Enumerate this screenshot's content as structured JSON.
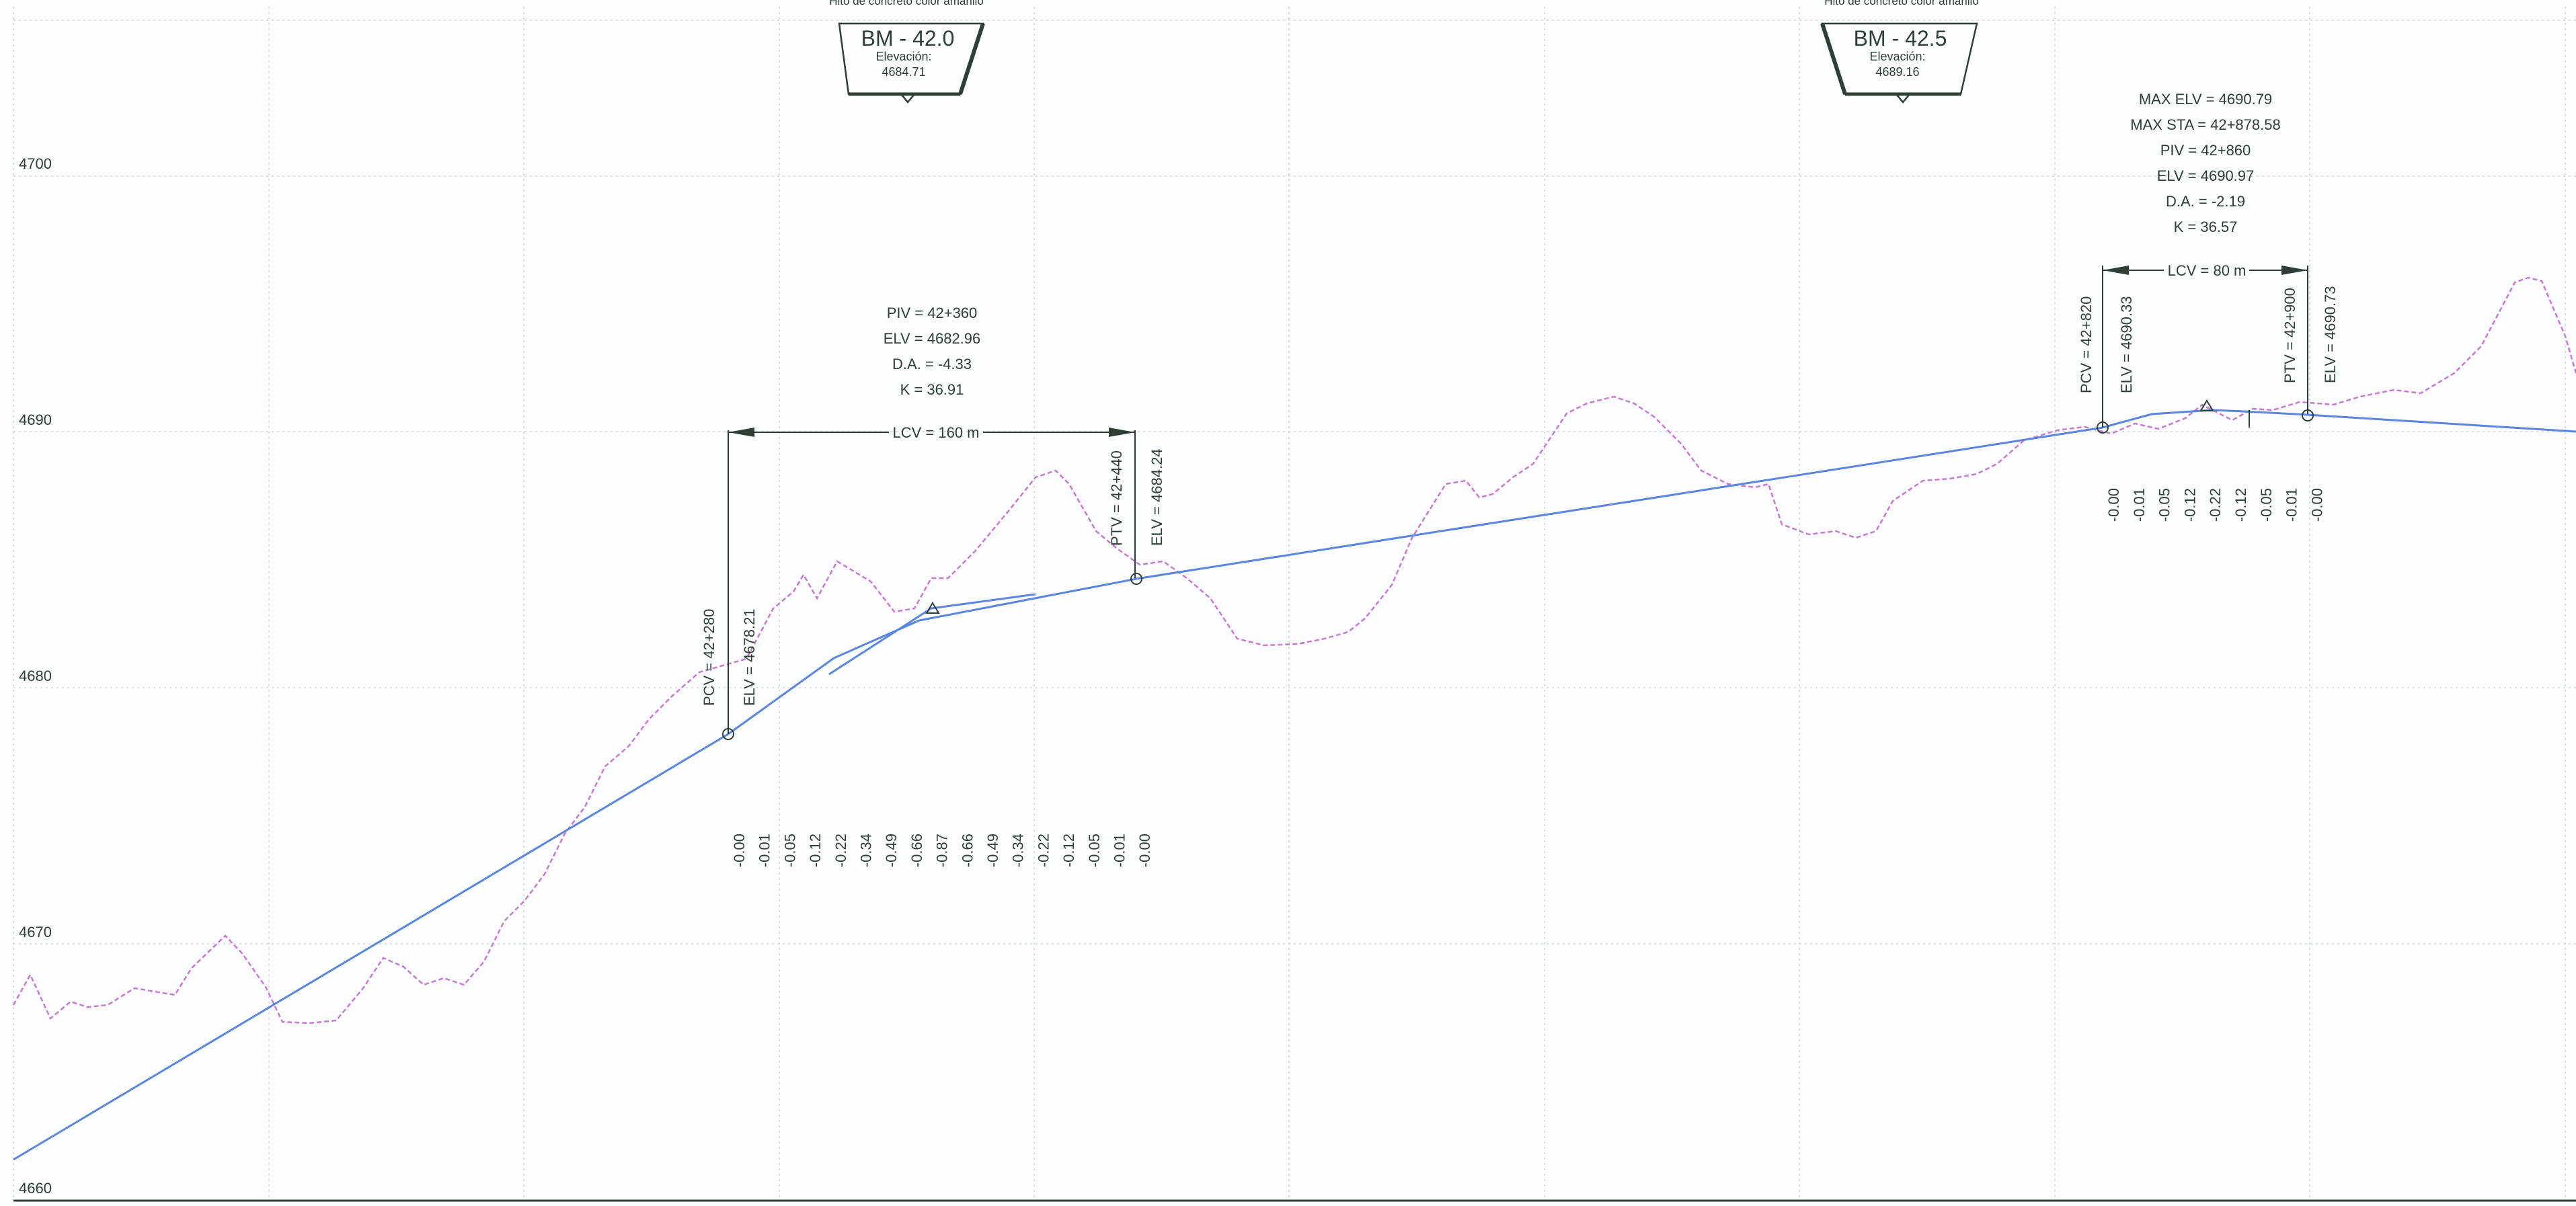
{
  "y_axis": {
    "ticks": [
      "4700",
      "4690",
      "4680",
      "4670",
      "4660"
    ]
  },
  "benchmarks": [
    {
      "caption": "Hito de concreto color amarillo",
      "name": "BM - 42.0",
      "elev_label": "Elevación:",
      "elev": "4684.71"
    },
    {
      "caption": "Hito de concreto color amarillo",
      "name": "BM - 42.5",
      "elev_label": "Elevación:",
      "elev": "4689.16"
    }
  ],
  "curve1": {
    "info": [
      "PIV = 42+360",
      "ELV = 4682.96",
      "D.A. = -4.33",
      "K = 36.91"
    ],
    "lcv": "LCV = 160 m",
    "pcv_sta": "PCV = 42+280",
    "pcv_elv": "ELV = 4678.21",
    "ptv_sta": "PTV = 42+440",
    "ptv_elv": "ELV = 4684.24",
    "offsets": [
      "-0.00",
      "-0.01",
      "-0.05",
      "-0.12",
      "-0.22",
      "-0.34",
      "-0.49",
      "-0.66",
      "-0.87",
      "-0.66",
      "-0.49",
      "-0.34",
      "-0.22",
      "-0.12",
      "-0.05",
      "-0.01",
      "-0.00"
    ]
  },
  "curve2": {
    "info": [
      "MAX ELV = 4690.79",
      "MAX STA = 42+878.58",
      "PIV = 42+860",
      "ELV = 4690.97",
      "D.A. = -2.19",
      "K = 36.57"
    ],
    "lcv": "LCV = 80 m",
    "pcv_sta": "PCV = 42+820",
    "pcv_elv": "ELV = 4690.33",
    "ptv_sta": "PTV = 42+900",
    "ptv_elv": "ELV = 4690.73",
    "offsets": [
      "-0.00",
      "-0.01",
      "-0.05",
      "-0.12",
      "-0.22",
      "-0.12",
      "-0.05",
      "-0.01",
      "-0.00"
    ]
  },
  "colors": {
    "grade": "#5b86e0",
    "ground": "#c77ad3",
    "text": "#2e3f36",
    "grid": "#c9d3de"
  }
}
